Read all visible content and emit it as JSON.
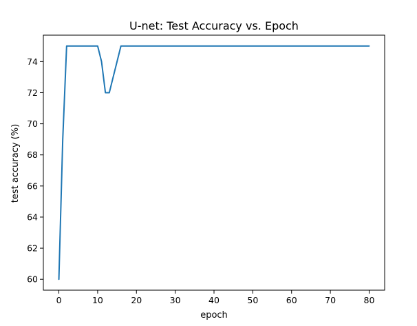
{
  "chart_data": {
    "type": "line",
    "title": "U-net: Test Accuracy vs. Epoch",
    "xlabel": "epoch",
    "ylabel": "test accuracy (%)",
    "xlim": [
      -4,
      84
    ],
    "ylim": [
      59.3,
      75.7
    ],
    "xticks": [
      0,
      10,
      20,
      30,
      40,
      50,
      60,
      70,
      80
    ],
    "xtick_labels": [
      "0",
      "10",
      "20",
      "30",
      "40",
      "50",
      "60",
      "70",
      "80"
    ],
    "yticks": [
      60,
      62,
      64,
      66,
      68,
      70,
      72,
      74
    ],
    "ytick_labels": [
      "60",
      "62",
      "64",
      "66",
      "68",
      "70",
      "72",
      "74"
    ],
    "grid": false,
    "legend": "none",
    "series": [
      {
        "color": "#1f77b4",
        "x": [
          0,
          1,
          2,
          3,
          4,
          5,
          6,
          7,
          8,
          9,
          10,
          11,
          12,
          13,
          14,
          15,
          16,
          17,
          18,
          19,
          20,
          21,
          22,
          23,
          24,
          25,
          26,
          27,
          28,
          29,
          30,
          31,
          32,
          33,
          34,
          35,
          36,
          37,
          38,
          39,
          40,
          41,
          42,
          43,
          44,
          45,
          46,
          47,
          48,
          49,
          50,
          51,
          52,
          53,
          54,
          55,
          56,
          57,
          58,
          59,
          60,
          61,
          62,
          63,
          64,
          65,
          66,
          67,
          68,
          69,
          70,
          71,
          72,
          73,
          74,
          75,
          76,
          77,
          78,
          79,
          80
        ],
        "y": [
          60,
          69,
          75,
          75,
          75,
          75,
          75,
          75,
          75,
          75,
          75,
          74,
          72,
          72,
          73,
          74,
          75,
          75,
          75,
          75,
          75,
          75,
          75,
          75,
          75,
          75,
          75,
          75,
          75,
          75,
          75,
          75,
          75,
          75,
          75,
          75,
          75,
          75,
          75,
          75,
          75,
          75,
          75,
          75,
          75,
          75,
          75,
          75,
          75,
          75,
          75,
          75,
          75,
          75,
          75,
          75,
          75,
          75,
          75,
          75,
          75,
          75,
          75,
          75,
          75,
          75,
          75,
          75,
          75,
          75,
          75,
          75,
          75,
          75,
          75,
          75,
          75,
          75,
          75,
          75,
          75
        ]
      }
    ]
  }
}
